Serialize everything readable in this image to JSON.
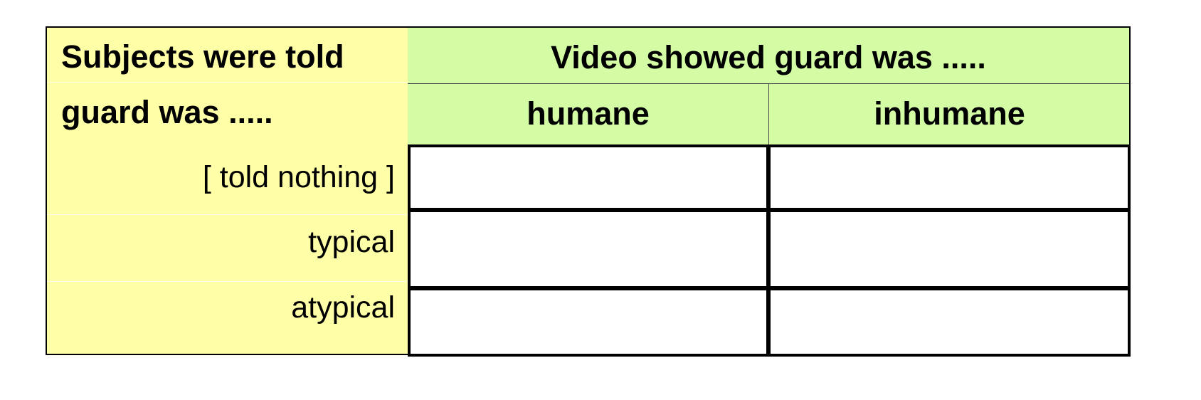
{
  "table": {
    "corner_header": {
      "line1": "Subjects were told",
      "line2": "guard was ....."
    },
    "top_header": "Video showed guard was .....",
    "columns": [
      "humane",
      "inhumane"
    ],
    "rows": [
      "[ told nothing ]",
      "typical",
      "atypical"
    ],
    "cells": [
      [
        "",
        ""
      ],
      [
        "",
        ""
      ],
      [
        "",
        ""
      ]
    ],
    "colors": {
      "left_panel": "#ffffa8",
      "header_panel": "#d4fca4",
      "cells": "#ffffff",
      "borders": "#000000"
    }
  }
}
